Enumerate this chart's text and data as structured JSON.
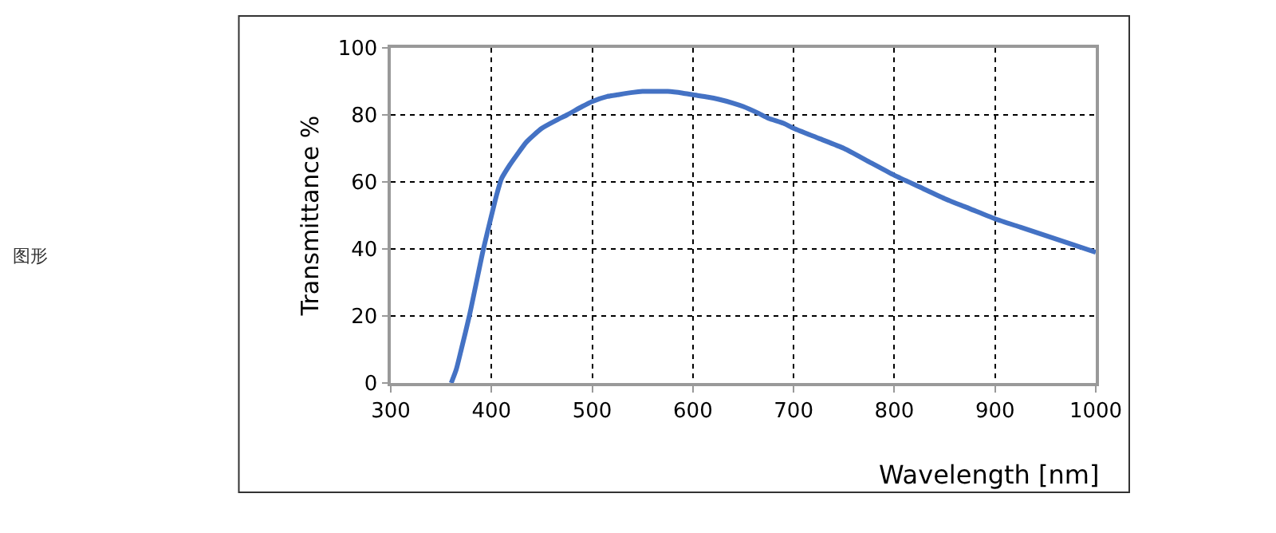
{
  "chart_data": {
    "type": "line",
    "xlabel": "Wavelength [nm]",
    "ylabel": "Transmittance %",
    "annotations": [
      "图形"
    ],
    "x": [
      360,
      365,
      370,
      378,
      385,
      392,
      400,
      405,
      410,
      418,
      425,
      435,
      450,
      465,
      475,
      490,
      500,
      515,
      525,
      540,
      550,
      565,
      575,
      590,
      600,
      615,
      625,
      640,
      650,
      665,
      675,
      690,
      700,
      725,
      750,
      775,
      800,
      825,
      850,
      875,
      900,
      925,
      950,
      975,
      1000
    ],
    "series": [
      {
        "color": "#4472c4",
        "values": [
          0,
          4,
          10,
          20,
          30,
          40,
          50,
          56,
          61,
          65,
          68,
          72,
          76,
          78.5,
          80,
          82.5,
          84,
          85.5,
          86,
          86.7,
          87,
          87,
          87,
          86.5,
          86,
          85.3,
          84.7,
          83.5,
          82.5,
          80.5,
          79,
          77.5,
          76,
          73,
          70,
          66,
          62,
          58.5,
          55,
          52,
          49,
          46.5,
          44,
          41.5,
          39
        ]
      }
    ],
    "xlim": [
      300,
      1000
    ],
    "xticks": [
      300,
      400,
      500,
      600,
      700,
      800,
      900,
      1000
    ],
    "ylim": [
      0,
      100
    ],
    "yticks": [
      0,
      20,
      40,
      60,
      80,
      100
    ],
    "grid": true,
    "line_style": "solid",
    "marker": "none"
  }
}
